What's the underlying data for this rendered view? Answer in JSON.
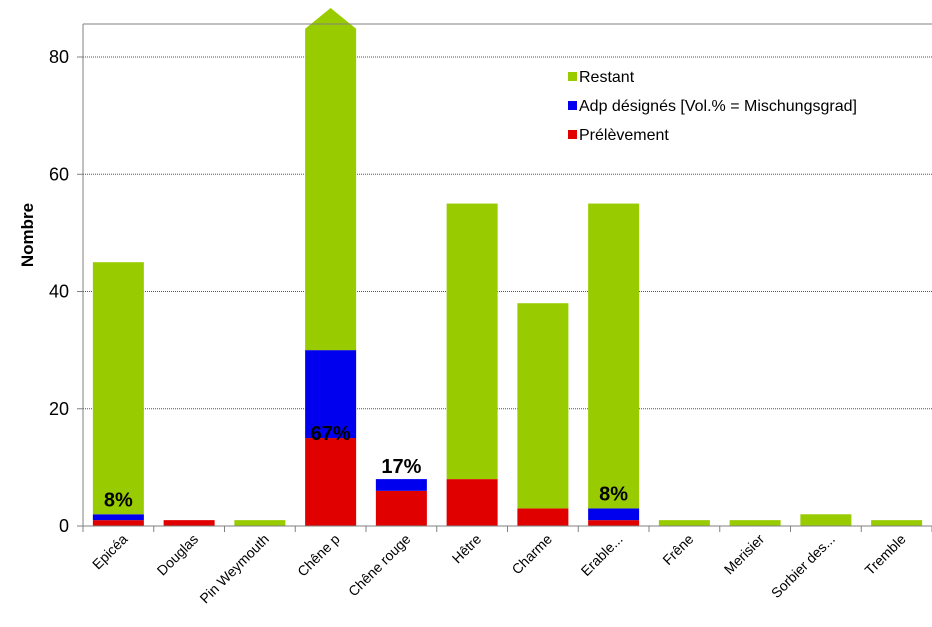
{
  "chart_data": {
    "type": "bar",
    "stacked": true,
    "ylabel": "Nombre",
    "ylim": [
      0,
      85
    ],
    "yticks": [
      0,
      20,
      40,
      60,
      80
    ],
    "grid": true,
    "legend_position": "top-right",
    "categories": [
      "Epicéa",
      "Douglas",
      "Pin Weymouth",
      "Chêne p",
      "Chêne rouge",
      "Hêtre",
      "Charme",
      "Erable...",
      "Frêne",
      "Merisier",
      "Sorbier des...",
      "Tremble"
    ],
    "series": [
      {
        "name": "Prélèvement",
        "color": "#e00000",
        "values": [
          1,
          1,
          0,
          15,
          6,
          8,
          3,
          1,
          0,
          0,
          0,
          0
        ]
      },
      {
        "name": "Adp désignés [Vol.% = Mischungsgrad]",
        "color": "#0000ee",
        "values": [
          1,
          0,
          0,
          15,
          2,
          0,
          0,
          2,
          0,
          0,
          0,
          0
        ]
      },
      {
        "name": "Restant",
        "color": "#99cc00",
        "values": [
          43,
          0,
          1,
          55,
          0,
          47,
          35,
          52,
          1,
          1,
          2,
          1
        ]
      }
    ],
    "legend_order": [
      "Restant",
      "Adp désignés [Vol.% = Mischungsgrad]",
      "Prélèvement"
    ],
    "overflow_category": "Chêne p",
    "annotations": [
      {
        "category": "Epicéa",
        "text": "8%"
      },
      {
        "category": "Chêne p",
        "text": "67%"
      },
      {
        "category": "Chêne rouge",
        "text": "17%"
      },
      {
        "category": "Erable...",
        "text": "8%"
      }
    ]
  }
}
